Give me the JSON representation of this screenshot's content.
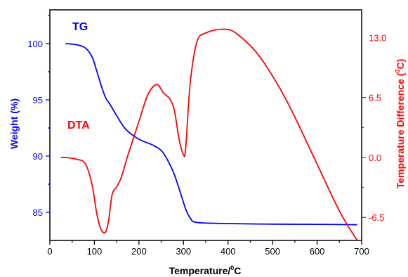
{
  "chart_data": {
    "type": "line",
    "title": "",
    "xlabel_main": "Temperature/",
    "xlabel_sup": "0",
    "xlabel_end": "C",
    "ylabel_left": "Weight (%)",
    "ylabel_right_main": "Temperature Difference (",
    "ylabel_right_sup": "0",
    "ylabel_right_end": "C)",
    "xlim": [
      0,
      700
    ],
    "ylim_left": [
      82.5,
      103
    ],
    "ylim_right": [
      -9.0,
      16.0
    ],
    "x_ticks": [
      "0",
      "100",
      "200",
      "300",
      "400",
      "500",
      "600",
      "700"
    ],
    "y_left_ticks": [
      "85",
      "90",
      "95",
      "100"
    ],
    "y_right_ticks": [
      "-6.5",
      "0.0",
      "6.5",
      "13.0"
    ],
    "colors": {
      "tg": "#0000ff",
      "dta": "#ff0000",
      "axis": "#000000"
    },
    "series": [
      {
        "name": "TG",
        "axis": "left",
        "color": "#0000ff",
        "x": [
          35,
          60,
          80,
          95,
          105,
          115,
          125,
          135,
          150,
          170,
          200,
          230,
          250,
          265,
          280,
          295,
          305,
          315,
          330,
          400,
          500,
          600,
          690
        ],
        "y": [
          100.0,
          99.9,
          99.6,
          98.8,
          97.6,
          96.3,
          95.2,
          94.6,
          93.6,
          92.4,
          91.5,
          91.0,
          90.5,
          89.6,
          88.3,
          86.5,
          85.3,
          84.5,
          84.1,
          84.0,
          83.95,
          83.93,
          83.9
        ]
      },
      {
        "name": "DTA",
        "axis": "right",
        "color": "#ff0000",
        "x": [
          25,
          35,
          60,
          80,
          95,
          105,
          115,
          125,
          132,
          140,
          150,
          160,
          175,
          200,
          220,
          240,
          255,
          270,
          280,
          290,
          300,
          305,
          315,
          330,
          350,
          390,
          420,
          470,
          530,
          590,
          650,
          690
        ],
        "y": [
          0.0,
          0.0,
          -0.2,
          -0.7,
          -3.0,
          -6.0,
          -7.8,
          -8.1,
          -6.8,
          -4.0,
          -3.2,
          -2.2,
          0.2,
          3.9,
          6.8,
          7.9,
          7.0,
          6.3,
          5.0,
          2.0,
          0.3,
          1.0,
          8.0,
          12.5,
          13.5,
          13.9,
          13.4,
          11.0,
          6.3,
          0.3,
          -5.8,
          -9.0
        ]
      }
    ]
  }
}
